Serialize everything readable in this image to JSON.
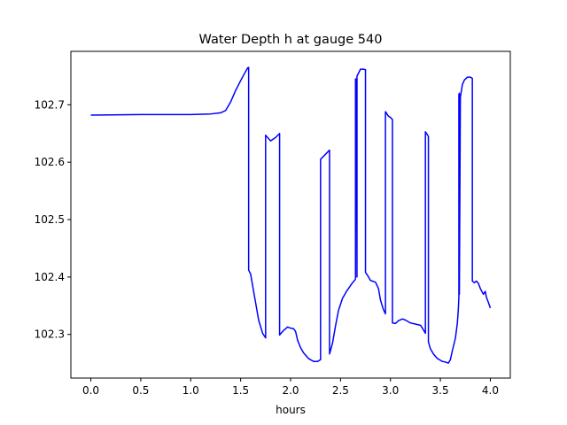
{
  "chart_data": {
    "type": "line",
    "title": "Water Depth h at gauge 540",
    "xlabel": "hours",
    "ylabel": "",
    "xlim": [
      -0.2,
      4.2
    ],
    "ylim": [
      102.224,
      102.793
    ],
    "xticks": [
      0.0,
      0.5,
      1.0,
      1.5,
      2.0,
      2.5,
      3.0,
      3.5,
      4.0
    ],
    "xtick_labels": [
      "0.0",
      "0.5",
      "1.0",
      "1.5",
      "2.0",
      "2.5",
      "3.0",
      "3.5",
      "4.0"
    ],
    "yticks": [
      102.3,
      102.4,
      102.5,
      102.6,
      102.7
    ],
    "ytick_labels": [
      "102.3",
      "102.4",
      "102.5",
      "102.6",
      "102.7"
    ],
    "grid": false,
    "series": [
      {
        "color": "#0000ff",
        "x": [
          0.0,
          0.5,
          1.0,
          1.2,
          1.3,
          1.35,
          1.4,
          1.45,
          1.5,
          1.55,
          1.57,
          1.58,
          1.58,
          1.6,
          1.62,
          1.65,
          1.68,
          1.72,
          1.75,
          1.75,
          1.8,
          1.85,
          1.89,
          1.89,
          1.93,
          1.97,
          2.0,
          2.03,
          2.05,
          2.07,
          2.1,
          2.13,
          2.16,
          2.18,
          2.2,
          2.22,
          2.23,
          2.25,
          2.27,
          2.3,
          2.3,
          2.39,
          2.39,
          2.42,
          2.45,
          2.48,
          2.52,
          2.56,
          2.6,
          2.62,
          2.645,
          2.65,
          2.65,
          2.66,
          2.665,
          2.665,
          2.68,
          2.7,
          2.73,
          2.75,
          2.75,
          2.77,
          2.8,
          2.85,
          2.88,
          2.9,
          2.93,
          2.95,
          2.95,
          2.98,
          3.0,
          3.02,
          3.02,
          3.05,
          3.08,
          3.12,
          3.15,
          3.2,
          3.25,
          3.3,
          3.32,
          3.34,
          3.35,
          3.35,
          3.38,
          3.38,
          3.4,
          3.43,
          3.47,
          3.5,
          3.52,
          3.55,
          3.58,
          3.6,
          3.62,
          3.65,
          3.67,
          3.68,
          3.685,
          3.685,
          3.69,
          3.69,
          3.7,
          3.72,
          3.74,
          3.77,
          3.8,
          3.82,
          3.82,
          3.84,
          3.86,
          3.88,
          3.9,
          3.93,
          3.95,
          3.96,
          3.98,
          4.0
        ],
        "y": [
          102.682,
          102.683,
          102.683,
          102.684,
          102.686,
          102.69,
          102.705,
          102.725,
          102.742,
          102.758,
          102.764,
          102.765,
          102.412,
          102.405,
          102.385,
          102.355,
          102.325,
          102.302,
          102.294,
          102.647,
          102.637,
          102.643,
          102.65,
          102.299,
          102.307,
          102.313,
          102.311,
          102.31,
          102.305,
          102.29,
          102.277,
          102.268,
          102.262,
          102.258,
          102.256,
          102.254,
          102.253,
          102.253,
          102.253,
          102.256,
          102.605,
          102.621,
          102.266,
          102.285,
          102.315,
          102.342,
          102.363,
          102.375,
          102.385,
          102.39,
          102.395,
          102.397,
          102.745,
          102.745,
          102.4,
          102.75,
          102.755,
          102.762,
          102.762,
          102.761,
          102.408,
          102.403,
          102.394,
          102.391,
          102.38,
          102.36,
          102.343,
          102.336,
          102.688,
          102.68,
          102.678,
          102.674,
          102.32,
          102.319,
          102.324,
          102.327,
          102.325,
          102.32,
          102.318,
          102.316,
          102.311,
          102.305,
          102.302,
          102.653,
          102.645,
          102.287,
          102.275,
          102.266,
          102.258,
          102.255,
          102.253,
          102.252,
          102.25,
          102.256,
          102.272,
          102.293,
          102.32,
          102.345,
          102.365,
          102.718,
          102.72,
          102.37,
          102.713,
          102.735,
          102.743,
          102.748,
          102.748,
          102.746,
          102.393,
          102.39,
          102.393,
          102.389,
          102.38,
          102.37,
          102.375,
          102.365,
          102.356,
          102.346
        ]
      }
    ]
  }
}
